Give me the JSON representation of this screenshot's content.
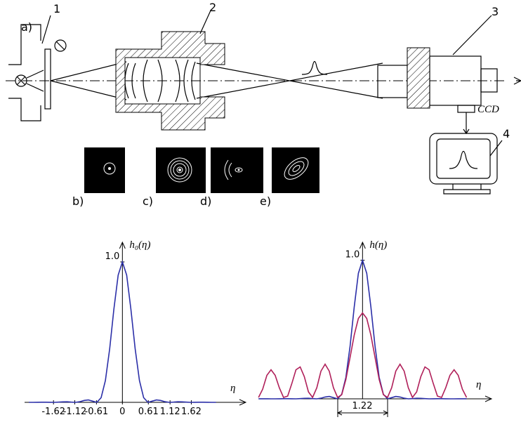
{
  "diagram": {
    "labels": {
      "panel_a": "a)",
      "part_1": "1",
      "part_2": "2",
      "part_3": "3",
      "part_4": "4",
      "ccd": "CCD",
      "panel_b": "b)",
      "panel_c": "c)",
      "panel_d": "d)",
      "panel_e": "e)"
    }
  },
  "chart_data": [
    {
      "type": "line",
      "y_label": "h₀(η)",
      "x_label": "η",
      "x": [
        -2.2,
        -2.1,
        -2.0,
        -1.9,
        -1.8,
        -1.7,
        -1.6,
        -1.5,
        -1.4,
        -1.3,
        -1.2,
        -1.1,
        -1.0,
        -0.9,
        -0.8,
        -0.7,
        -0.6,
        -0.5,
        -0.4,
        -0.3,
        -0.2,
        -0.1,
        0,
        0.1,
        0.2,
        0.3,
        0.4,
        0.5,
        0.6,
        0.7,
        0.8,
        0.9,
        1.0,
        1.1,
        1.2,
        1.3,
        1.4,
        1.5,
        1.6,
        1.7,
        1.8,
        1.9,
        2.0,
        2.1,
        2.2
      ],
      "series": [
        {
          "color": "#2b2fa8",
          "values": [
            0.0002,
            0,
            0.0006,
            0.0012,
            0.0012,
            0.0005,
            0,
            0.0014,
            0.0036,
            0.0039,
            0.0015,
            0,
            0.0046,
            0.0134,
            0.017,
            0.0085,
            0,
            0.033,
            0.155,
            0.381,
            0.664,
            0.906,
            1,
            0.906,
            0.664,
            0.381,
            0.155,
            0.033,
            0,
            0.0085,
            0.017,
            0.0134,
            0.0046,
            0,
            0.0015,
            0.0039,
            0.0036,
            0.0014,
            0,
            0.0005,
            0.0012,
            0.0012,
            0.0006,
            0,
            0.0002
          ]
        }
      ],
      "xlim": [
        -2.3,
        2.9
      ],
      "ylim": [
        0,
        1.14
      ],
      "xticks": [
        -1.62,
        -1.12,
        -0.61,
        0,
        0.61,
        1.12,
        1.62
      ],
      "yticks": [
        {
          "value": 1,
          "label": "1.0"
        }
      ]
    },
    {
      "type": "line",
      "y_label": "h(η)",
      "x_label": "η",
      "annotations": [
        "1.22"
      ],
      "x": [
        -2.5,
        -2.4,
        -2.3,
        -2.2,
        -2.1,
        -2.0,
        -1.9,
        -1.8,
        -1.7,
        -1.6,
        -1.5,
        -1.4,
        -1.3,
        -1.2,
        -1.1,
        -1.0,
        -0.9,
        -0.8,
        -0.7,
        -0.6,
        -0.5,
        -0.4,
        -0.3,
        -0.2,
        -0.1,
        0,
        0.1,
        0.2,
        0.3,
        0.4,
        0.5,
        0.6,
        0.7,
        0.8,
        0.9,
        1.0,
        1.1,
        1.2,
        1.3,
        1.4,
        1.5,
        1.6,
        1.7,
        1.8,
        1.9,
        2.0,
        2.1,
        2.2,
        2.3,
        2.4,
        2.5
      ],
      "series": [
        {
          "color": "#2b2fa8",
          "values": [
            0.0006,
            0.0007,
            0.0006,
            0.0002,
            0,
            0.0006,
            0.0012,
            0.0012,
            0.0005,
            0,
            0.0014,
            0.0036,
            0.0039,
            0.0015,
            0,
            0.0046,
            0.0134,
            0.017,
            0.0085,
            0,
            0.033,
            0.155,
            0.381,
            0.664,
            0.906,
            1,
            0.906,
            0.664,
            0.381,
            0.155,
            0.033,
            0,
            0.0085,
            0.017,
            0.0134,
            0.0046,
            0,
            0.0015,
            0.0039,
            0.0036,
            0.0014,
            0,
            0.0005,
            0.0012,
            0.0012,
            0.0006,
            0,
            0.0002,
            0.0006,
            0.0007,
            0.0006
          ]
        },
        {
          "color": "#b0205a",
          "values": [
            0.01,
            0.07,
            0.17,
            0.21,
            0.17,
            0.08,
            0.01,
            0.02,
            0.11,
            0.21,
            0.23,
            0.16,
            0.05,
            0.01,
            0.08,
            0.2,
            0.25,
            0.2,
            0.08,
            0.01,
            0.03,
            0.14,
            0.3,
            0.46,
            0.58,
            0.62,
            0.58,
            0.46,
            0.3,
            0.14,
            0.03,
            0.01,
            0.08,
            0.2,
            0.25,
            0.2,
            0.08,
            0.01,
            0.05,
            0.16,
            0.23,
            0.21,
            0.11,
            0.02,
            0.01,
            0.08,
            0.17,
            0.21,
            0.17,
            0.07,
            0.01
          ]
        }
      ],
      "xlim": [
        -2.47,
        3.1
      ],
      "ylim": [
        0,
        1.13
      ],
      "yticks": [
        {
          "value": 1,
          "label": "1.0"
        }
      ]
    }
  ]
}
